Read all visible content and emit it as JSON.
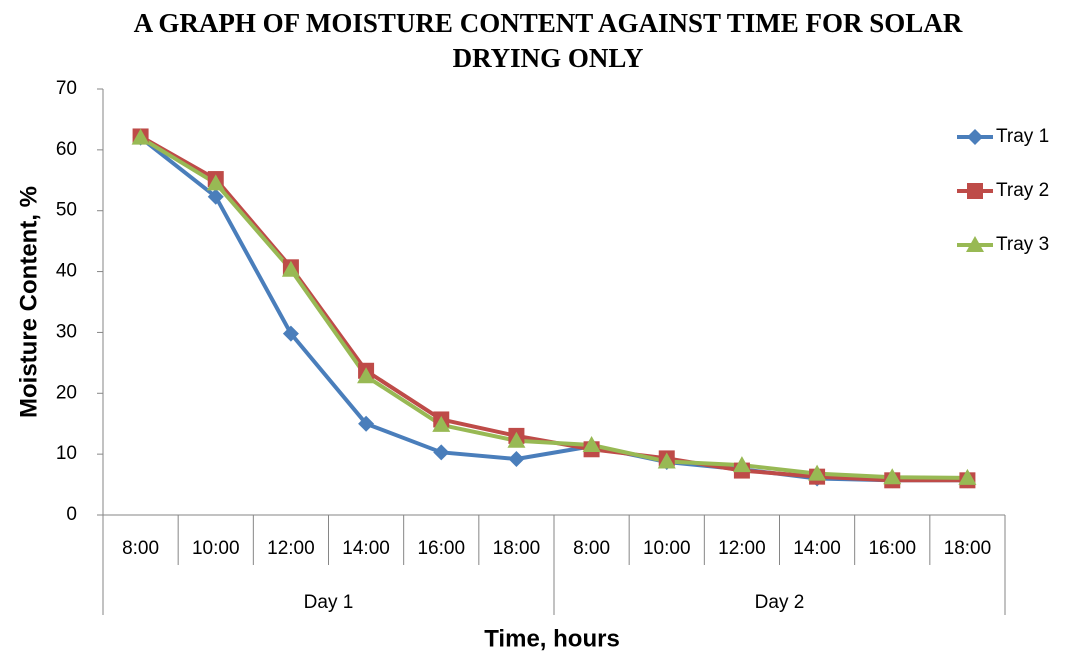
{
  "chart_data": {
    "type": "line",
    "title": "A GRAPH OF MOISTURE CONTENT AGAINST TIME FOR SOLAR DRYING ONLY",
    "x_label": "Time, hours",
    "y_label": "Moisture Content, %",
    "categories": [
      "8:00",
      "10:00",
      "12:00",
      "14:00",
      "16:00",
      "18:00",
      "8:00",
      "10:00",
      "12:00",
      "14:00",
      "16:00",
      "18:00"
    ],
    "category_groups": [
      "Day 1",
      "Day 2"
    ],
    "series": [
      {
        "name": "Tray 1",
        "color": "#4a7ebb",
        "marker": "diamond",
        "values": [
          62,
          52.3,
          29.8,
          15,
          10.3,
          9.2,
          11.3,
          8.7,
          7.5,
          6,
          5.7,
          5.7
        ]
      },
      {
        "name": "Tray 2",
        "color": "#be4b48",
        "marker": "square",
        "values": [
          62.2,
          55.2,
          40.7,
          23.7,
          15.7,
          13,
          10.8,
          9.3,
          7.3,
          6.3,
          5.7,
          5.7
        ]
      },
      {
        "name": "Tray 3",
        "color": "#98b954",
        "marker": "triangle",
        "values": [
          62,
          54.5,
          40.3,
          22.8,
          14.8,
          12.2,
          11.5,
          8.8,
          8.2,
          6.8,
          6.2,
          6.1
        ]
      }
    ],
    "ylim": [
      0,
      70
    ],
    "yticks": [
      0,
      10,
      20,
      30,
      40,
      50,
      60,
      70
    ],
    "grid": false,
    "legend": "right"
  }
}
